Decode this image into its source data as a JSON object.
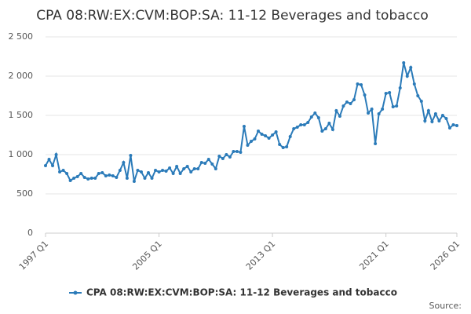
{
  "chart_data": {
    "type": "line",
    "title": "CPA 08:RW:EX:CVM:BOP:SA: 11-12 Beverages and tobacco",
    "source": "Source:",
    "categories": [
      "1997 Q1",
      null,
      null,
      null,
      null,
      null,
      null,
      null,
      null,
      null,
      null,
      null,
      null,
      null,
      null,
      null,
      null,
      null,
      null,
      null,
      null,
      null,
      null,
      null,
      null,
      null,
      null,
      null,
      null,
      null,
      null,
      null,
      "2005 Q1",
      null,
      null,
      null,
      null,
      null,
      null,
      null,
      null,
      null,
      null,
      null,
      null,
      null,
      null,
      null,
      null,
      null,
      null,
      null,
      null,
      null,
      null,
      null,
      null,
      null,
      null,
      null,
      null,
      null,
      null,
      null,
      "2013 Q1",
      null,
      null,
      null,
      null,
      null,
      null,
      null,
      null,
      null,
      null,
      null,
      null,
      null,
      null,
      null,
      null,
      null,
      null,
      null,
      null,
      null,
      null,
      null,
      null,
      null,
      null,
      null,
      null,
      null,
      null,
      null,
      "2021 Q1",
      null,
      null,
      null,
      null,
      null,
      null,
      null,
      null,
      null,
      null,
      null,
      null,
      null,
      null,
      null,
      null,
      null,
      null,
      null,
      "2026 Q1"
    ],
    "series": [
      {
        "name": "CPA 08:RW:EX:CVM:BOP:SA: 11-12 Beverages and tobacco",
        "color": "#2b7bb9",
        "values": [
          860,
          940,
          860,
          1000,
          780,
          800,
          760,
          670,
          700,
          720,
          760,
          710,
          690,
          700,
          700,
          760,
          770,
          730,
          740,
          730,
          710,
          800,
          900,
          700,
          990,
          660,
          800,
          780,
          700,
          770,
          700,
          800,
          780,
          800,
          790,
          830,
          760,
          850,
          760,
          820,
          850,
          780,
          820,
          820,
          900,
          890,
          940,
          880,
          820,
          980,
          950,
          1000,
          970,
          1040,
          1040,
          1030,
          1360,
          1120,
          1170,
          1200,
          1300,
          1260,
          1240,
          1210,
          1250,
          1290,
          1130,
          1090,
          1100,
          1230,
          1330,
          1350,
          1380,
          1380,
          1410,
          1480,
          1530,
          1470,
          1300,
          1330,
          1400,
          1320,
          1560,
          1490,
          1620,
          1670,
          1650,
          1700,
          1900,
          1890,
          1760,
          1530,
          1580,
          1140,
          1520,
          1580,
          1780,
          1790,
          1610,
          1620,
          1850,
          2170,
          2000,
          2110,
          1900,
          1750,
          1680,
          1430,
          1560,
          1420,
          1520,
          1430,
          1500,
          1460,
          1340,
          1380,
          1370
        ]
      }
    ],
    "ylim": [
      0,
      2500
    ],
    "yticks": [
      0,
      500,
      {
        "value": 1000,
        "label": "1 000"
      },
      {
        "value": 1500,
        "label": "1 500"
      },
      {
        "value": 2000,
        "label": "2 000"
      },
      {
        "value": 2500,
        "label": "2 500"
      }
    ],
    "grid": true
  }
}
